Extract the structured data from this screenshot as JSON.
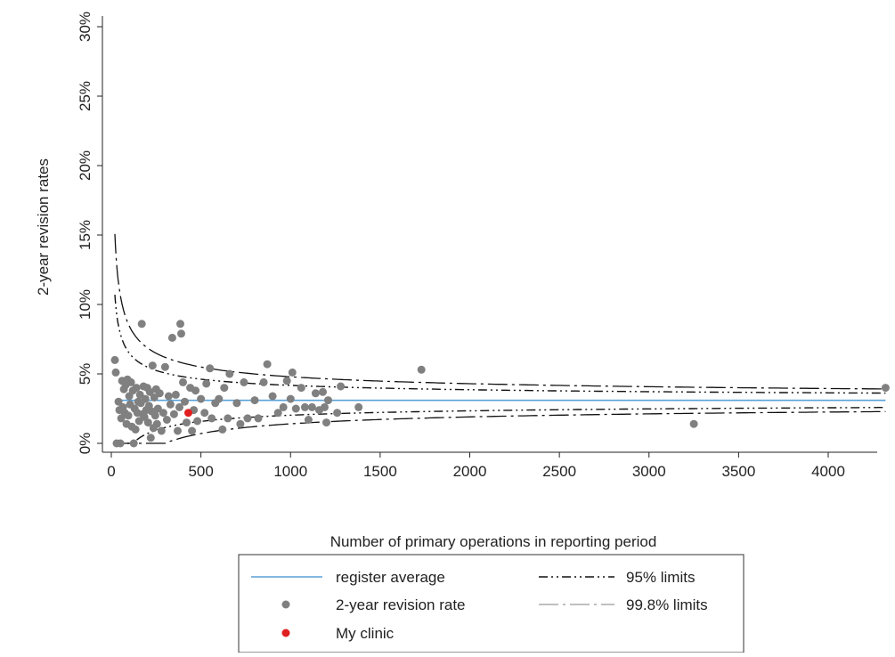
{
  "chart_data": {
    "type": "scatter",
    "title": "",
    "xlabel": "Number of primary operations in reporting period",
    "ylabel": "2-year revision rates",
    "xlim": [
      0,
      4500
    ],
    "ylim": [
      0,
      30
    ],
    "x_ticks": [
      0,
      500,
      1000,
      1500,
      2000,
      2500,
      3000,
      3500,
      4000,
      4500
    ],
    "y_ticks": [
      0,
      5,
      10,
      15,
      20,
      25,
      30
    ],
    "y_tick_labels": [
      "0%",
      "5%",
      "10%",
      "15%",
      "20%",
      "25%",
      "30%"
    ],
    "grid": false,
    "legend_position": "bottom",
    "register_average": 3.1,
    "colors": {
      "average": "#5aa0d8",
      "points": "#808080",
      "my_clinic": "#e02020",
      "limits": "#111111"
    },
    "legend": [
      {
        "label": "register average",
        "style": "solid-line"
      },
      {
        "label": "95% limits",
        "style": "dash-dot-dot"
      },
      {
        "label": "2-year revision rate",
        "style": "gray-dot"
      },
      {
        "label": "99.8% limits",
        "style": "long-dash-dot"
      },
      {
        "label": "My clinic",
        "style": "red-dot"
      }
    ],
    "series": [
      {
        "name": "2-year revision rate",
        "points": [
          [
            20,
            6.0
          ],
          [
            25,
            5.1
          ],
          [
            30,
            0.0
          ],
          [
            40,
            3.0
          ],
          [
            45,
            2.4
          ],
          [
            50,
            0.0
          ],
          [
            55,
            1.8
          ],
          [
            60,
            4.5
          ],
          [
            65,
            2.6
          ],
          [
            70,
            3.9
          ],
          [
            75,
            2.2
          ],
          [
            80,
            4.2
          ],
          [
            85,
            1.4
          ],
          [
            90,
            4.6
          ],
          [
            95,
            2.0
          ],
          [
            100,
            3.4
          ],
          [
            105,
            2.8
          ],
          [
            110,
            4.4
          ],
          [
            115,
            1.2
          ],
          [
            120,
            3.8
          ],
          [
            125,
            0.0
          ],
          [
            130,
            2.5
          ],
          [
            135,
            1.0
          ],
          [
            140,
            4.0
          ],
          [
            145,
            2.2
          ],
          [
            150,
            3.0
          ],
          [
            155,
            1.6
          ],
          [
            160,
            3.5
          ],
          [
            165,
            2.9
          ],
          [
            170,
            8.6
          ],
          [
            175,
            2.1
          ],
          [
            180,
            4.1
          ],
          [
            185,
            1.9
          ],
          [
            190,
            3.2
          ],
          [
            195,
            2.4
          ],
          [
            200,
            4.0
          ],
          [
            205,
            1.5
          ],
          [
            210,
            2.7
          ],
          [
            215,
            3.7
          ],
          [
            220,
            0.4
          ],
          [
            225,
            2.3
          ],
          [
            230,
            5.6
          ],
          [
            235,
            1.1
          ],
          [
            240,
            3.3
          ],
          [
            245,
            2.0
          ],
          [
            250,
            3.9
          ],
          [
            255,
            1.4
          ],
          [
            260,
            2.5
          ],
          [
            270,
            3.6
          ],
          [
            280,
            0.9
          ],
          [
            290,
            2.2
          ],
          [
            300,
            5.5
          ],
          [
            310,
            1.7
          ],
          [
            320,
            3.4
          ],
          [
            330,
            2.8
          ],
          [
            340,
            7.6
          ],
          [
            350,
            2.1
          ],
          [
            360,
            3.5
          ],
          [
            370,
            0.9
          ],
          [
            380,
            2.6
          ],
          [
            385,
            8.6
          ],
          [
            390,
            7.9
          ],
          [
            400,
            4.4
          ],
          [
            410,
            3.0
          ],
          [
            420,
            1.5
          ],
          [
            440,
            4.0
          ],
          [
            450,
            0.9
          ],
          [
            460,
            2.4
          ],
          [
            470,
            3.8
          ],
          [
            480,
            1.6
          ],
          [
            500,
            3.2
          ],
          [
            520,
            2.2
          ],
          [
            530,
            4.3
          ],
          [
            550,
            5.4
          ],
          [
            560,
            1.8
          ],
          [
            580,
            2.9
          ],
          [
            600,
            3.2
          ],
          [
            620,
            1.0
          ],
          [
            630,
            4.0
          ],
          [
            650,
            1.8
          ],
          [
            660,
            5.0
          ],
          [
            700,
            2.9
          ],
          [
            720,
            1.4
          ],
          [
            740,
            4.4
          ],
          [
            760,
            1.8
          ],
          [
            800,
            3.1
          ],
          [
            820,
            1.8
          ],
          [
            850,
            4.4
          ],
          [
            870,
            5.7
          ],
          [
            900,
            3.4
          ],
          [
            930,
            2.2
          ],
          [
            960,
            2.6
          ],
          [
            980,
            4.5
          ],
          [
            1000,
            3.2
          ],
          [
            1010,
            5.1
          ],
          [
            1030,
            2.5
          ],
          [
            1060,
            4.0
          ],
          [
            1080,
            2.6
          ],
          [
            1100,
            1.7
          ],
          [
            1120,
            2.6
          ],
          [
            1140,
            3.6
          ],
          [
            1160,
            2.4
          ],
          [
            1180,
            3.7
          ],
          [
            1190,
            2.6
          ],
          [
            1200,
            1.5
          ],
          [
            1210,
            3.1
          ],
          [
            1260,
            2.2
          ],
          [
            1280,
            4.1
          ],
          [
            1380,
            2.6
          ],
          [
            1730,
            5.3
          ],
          [
            3250,
            1.4
          ],
          [
            4320,
            4.0
          ]
        ]
      },
      {
        "name": "My clinic",
        "points": [
          [
            430,
            2.2
          ]
        ]
      }
    ]
  }
}
